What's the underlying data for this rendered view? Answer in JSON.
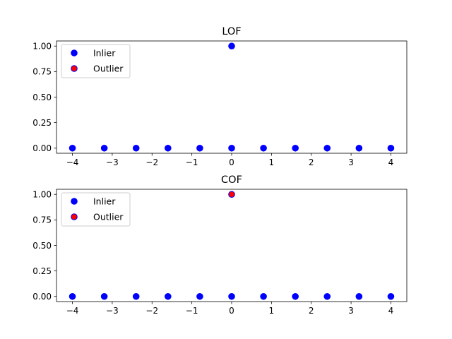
{
  "chart_data": [
    {
      "type": "scatter",
      "title": "LOF",
      "xlabel": "",
      "ylabel": "",
      "xlim": [
        -4.4,
        4.4
      ],
      "ylim": [
        -0.05,
        1.05
      ],
      "xticks": [
        -4,
        -3,
        -2,
        -1,
        0,
        1,
        2,
        3,
        4
      ],
      "xtick_labels": [
        "−4",
        "−3",
        "−2",
        "−1",
        "0",
        "1",
        "2",
        "3",
        "4"
      ],
      "yticks": [
        0.0,
        0.25,
        0.5,
        0.75,
        1.0
      ],
      "ytick_labels": [
        "0.00",
        "0.25",
        "0.50",
        "0.75",
        "1.00"
      ],
      "grid": false,
      "legend_position": "top-left",
      "legend": [
        {
          "label": "Inlier",
          "color": "#0000ff",
          "edge": "#0000ff"
        },
        {
          "label": "Outlier",
          "color": "#ff0000",
          "edge": "#0000ff"
        }
      ],
      "points": [
        {
          "x": -4.0,
          "y": 0,
          "class": "Inlier"
        },
        {
          "x": -3.2,
          "y": 0,
          "class": "Inlier"
        },
        {
          "x": -2.4,
          "y": 0,
          "class": "Inlier"
        },
        {
          "x": -1.6,
          "y": 0,
          "class": "Inlier"
        },
        {
          "x": -0.8,
          "y": 0,
          "class": "Inlier"
        },
        {
          "x": 0.0,
          "y": 0,
          "class": "Inlier"
        },
        {
          "x": 0.8,
          "y": 0,
          "class": "Inlier"
        },
        {
          "x": 1.6,
          "y": 0,
          "class": "Inlier"
        },
        {
          "x": 2.4,
          "y": 0,
          "class": "Inlier"
        },
        {
          "x": 3.2,
          "y": 0,
          "class": "Inlier"
        },
        {
          "x": 4.0,
          "y": 0,
          "class": "Inlier"
        },
        {
          "x": 0.0,
          "y": 1,
          "class": "Inlier"
        }
      ]
    },
    {
      "type": "scatter",
      "title": "COF",
      "xlabel": "",
      "ylabel": "",
      "xlim": [
        -4.4,
        4.4
      ],
      "ylim": [
        -0.05,
        1.05
      ],
      "xticks": [
        -4,
        -3,
        -2,
        -1,
        0,
        1,
        2,
        3,
        4
      ],
      "xtick_labels": [
        "−4",
        "−3",
        "−2",
        "−1",
        "0",
        "1",
        "2",
        "3",
        "4"
      ],
      "yticks": [
        0.0,
        0.25,
        0.5,
        0.75,
        1.0
      ],
      "ytick_labels": [
        "0.00",
        "0.25",
        "0.50",
        "0.75",
        "1.00"
      ],
      "grid": false,
      "legend_position": "top-left",
      "legend": [
        {
          "label": "Inlier",
          "color": "#0000ff",
          "edge": "#0000ff"
        },
        {
          "label": "Outlier",
          "color": "#ff0000",
          "edge": "#0000ff"
        }
      ],
      "points": [
        {
          "x": -4.0,
          "y": 0,
          "class": "Inlier"
        },
        {
          "x": -3.2,
          "y": 0,
          "class": "Inlier"
        },
        {
          "x": -2.4,
          "y": 0,
          "class": "Inlier"
        },
        {
          "x": -1.6,
          "y": 0,
          "class": "Inlier"
        },
        {
          "x": -0.8,
          "y": 0,
          "class": "Inlier"
        },
        {
          "x": 0.0,
          "y": 0,
          "class": "Inlier"
        },
        {
          "x": 0.8,
          "y": 0,
          "class": "Inlier"
        },
        {
          "x": 1.6,
          "y": 0,
          "class": "Inlier"
        },
        {
          "x": 2.4,
          "y": 0,
          "class": "Inlier"
        },
        {
          "x": 3.2,
          "y": 0,
          "class": "Inlier"
        },
        {
          "x": 4.0,
          "y": 0,
          "class": "Inlier"
        },
        {
          "x": 0.0,
          "y": 1,
          "class": "Outlier"
        }
      ]
    }
  ]
}
